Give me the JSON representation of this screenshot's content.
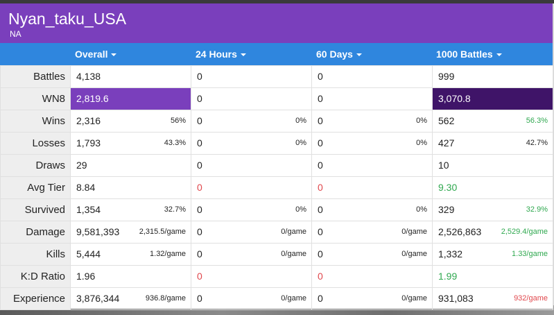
{
  "player": {
    "name": "Nyan_taku_USA",
    "region": "NA"
  },
  "tabs": [
    {
      "label": "Overall"
    },
    {
      "label": "24 Hours"
    },
    {
      "label": "60 Days"
    },
    {
      "label": "1000 Battles"
    }
  ],
  "rows": {
    "battles": {
      "label": "Battles",
      "overall": "4,138",
      "h24": "0",
      "d60": "0",
      "b1000": "999"
    },
    "wn8": {
      "label": "WN8",
      "overall": "2,819.6",
      "h24": "0",
      "d60": "0",
      "b1000": "3,070.8"
    },
    "wins": {
      "label": "Wins",
      "overall": "2,316",
      "overall_sub": "56%",
      "h24": "0",
      "h24_sub": "0%",
      "d60": "0",
      "d60_sub": "0%",
      "b1000": "562",
      "b1000_sub": "56.3%"
    },
    "losses": {
      "label": "Losses",
      "overall": "1,793",
      "overall_sub": "43.3%",
      "h24": "0",
      "h24_sub": "0%",
      "d60": "0",
      "d60_sub": "0%",
      "b1000": "427",
      "b1000_sub": "42.7%"
    },
    "draws": {
      "label": "Draws",
      "overall": "29",
      "h24": "0",
      "d60": "0",
      "b1000": "10"
    },
    "avg_tier": {
      "label": "Avg Tier",
      "overall": "8.84",
      "h24": "0",
      "d60": "0",
      "b1000": "9.30"
    },
    "survived": {
      "label": "Survived",
      "overall": "1,354",
      "overall_sub": "32.7%",
      "h24": "0",
      "h24_sub": "0%",
      "d60": "0",
      "d60_sub": "0%",
      "b1000": "329",
      "b1000_sub": "32.9%"
    },
    "damage": {
      "label": "Damage",
      "overall": "9,581,393",
      "overall_sub": "2,315.5/game",
      "h24": "0",
      "h24_sub": "0/game",
      "d60": "0",
      "d60_sub": "0/game",
      "b1000": "2,526,863",
      "b1000_sub": "2,529.4/game"
    },
    "kills": {
      "label": "Kills",
      "overall": "5,444",
      "overall_sub": "1.32/game",
      "h24": "0",
      "h24_sub": "0/game",
      "d60": "0",
      "d60_sub": "0/game",
      "b1000": "1,332",
      "b1000_sub": "1.33/game"
    },
    "kd": {
      "label": "K:D Ratio",
      "overall": "1.96",
      "h24": "0",
      "d60": "0",
      "b1000": "1.99"
    },
    "experience": {
      "label": "Experience",
      "overall": "3,876,344",
      "overall_sub": "936.8/game",
      "h24": "0",
      "h24_sub": "0/game",
      "d60": "0",
      "d60_sub": "0/game",
      "b1000": "931,083",
      "b1000_sub": "932/game"
    }
  },
  "colors": {
    "header": "#7a3fbc",
    "tabbar": "#2f86de",
    "wn8_overall": "#7a3fbc",
    "wn8_1000": "#3f1468",
    "good": "#2fa84f",
    "bad": "#e0474c"
  },
  "icons": {
    "tab_dropdown": "caret-down-icon"
  }
}
